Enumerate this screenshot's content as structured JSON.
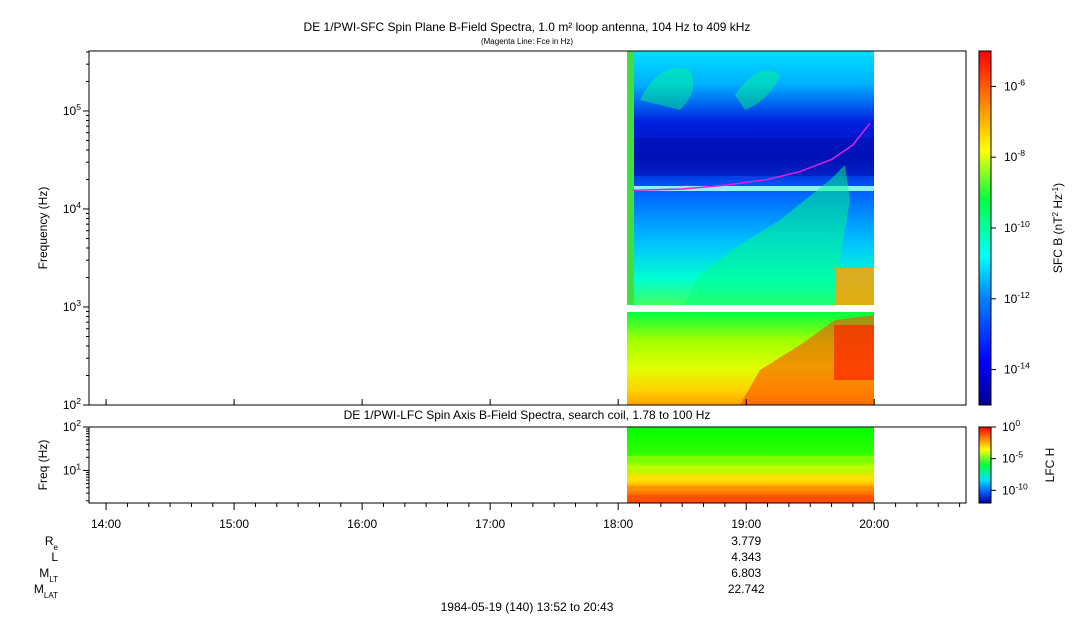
{
  "chart_data": [
    {
      "type": "heatmap",
      "title": "DE 1/PWI-SFC  Spin Plane B-Field Spectra, 1.0 m² loop antenna, 104 Hz to 409 kHz",
      "subtitle": "(Magenta Line: Fce in Hz)",
      "ylabel": "Frequency (Hz)",
      "yscale": "log",
      "ylim": [
        100,
        409000
      ],
      "yticks": [
        {
          "base": "10",
          "exp": "2"
        },
        {
          "base": "10",
          "exp": "3"
        },
        {
          "base": "10",
          "exp": "4"
        },
        {
          "base": "10",
          "exp": "5"
        }
      ],
      "colorbar": {
        "label_main": "SFC B (nT",
        "label_sup1": "2",
        "label_mid": " Hz",
        "label_sup2": "-1",
        "label_end": ")",
        "scale": "log",
        "range": [
          1e-15,
          1e-05
        ],
        "ticks": [
          {
            "base": "10",
            "exp": "-6"
          },
          {
            "base": "10",
            "exp": "-8"
          },
          {
            "base": "10",
            "exp": "-10"
          },
          {
            "base": "10",
            "exp": "-12"
          },
          {
            "base": "10",
            "exp": "-14"
          }
        ]
      },
      "data_coverage": [
        "18:04",
        "20:00"
      ],
      "fce_line": {
        "color": "#e020e0",
        "points": [
          {
            "time": "18:07",
            "freq_hz": 15500
          },
          {
            "time": "18:30",
            "freq_hz": 16000
          },
          {
            "time": "18:50",
            "freq_hz": 17500
          },
          {
            "time": "19:10",
            "freq_hz": 20000
          },
          {
            "time": "19:25",
            "freq_hz": 24000
          },
          {
            "time": "19:40",
            "freq_hz": 32000
          },
          {
            "time": "19:50",
            "freq_hz": 45000
          },
          {
            "time": "19:58",
            "freq_hz": 75000
          }
        ]
      }
    },
    {
      "type": "heatmap",
      "title": "DE 1/PWI-LFC  Spin Axis B-Field Spectra, search coil, 1.78 to 100 Hz",
      "ylabel": "Freq (Hz)",
      "yscale": "log",
      "ylim": [
        1.78,
        100
      ],
      "yticks": [
        {
          "base": "10",
          "exp": "1"
        },
        {
          "base": "10",
          "exp": "2"
        }
      ],
      "colorbar": {
        "label": "LFC H",
        "scale": "log",
        "range": [
          1e-12,
          1
        ],
        "ticks": [
          {
            "base": "10",
            "exp": "0"
          },
          {
            "base": "10",
            "exp": "-5"
          },
          {
            "base": "10",
            "exp": "-10"
          }
        ]
      },
      "data_coverage": [
        "18:04",
        "20:00"
      ]
    }
  ],
  "x_axis": {
    "range": [
      "13:52",
      "20:43"
    ],
    "ticks": [
      "14:00",
      "15:00",
      "16:00",
      "17:00",
      "18:00",
      "19:00",
      "20:00"
    ]
  },
  "ephemeris": {
    "rows": [
      {
        "label": "R",
        "sub": "e",
        "value": "3.779"
      },
      {
        "label": "L",
        "sub": "",
        "value": "4.343"
      },
      {
        "label": "M",
        "sub": "LT",
        "value": "6.803"
      },
      {
        "label": "M",
        "sub": "LAT",
        "value": "22.742"
      }
    ]
  },
  "footer": "1984-05-19 (140) 13:52 to 20:43"
}
